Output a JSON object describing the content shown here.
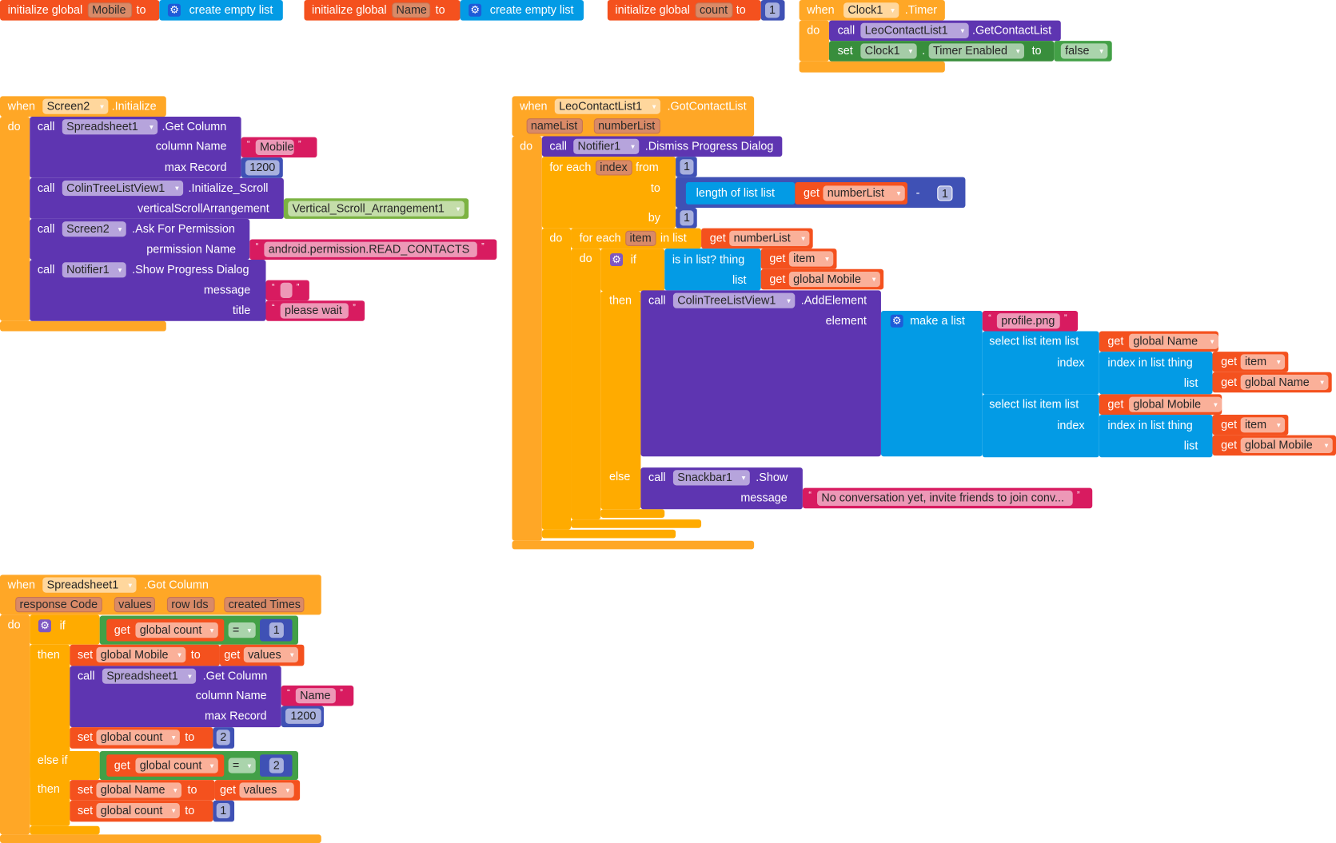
{
  "colors": {
    "event": "#FFA726",
    "control": "#FFAB00",
    "procedure": "#5E35B1",
    "variable": "#F4511E",
    "text": "#D81B60",
    "math": "#3F51B5",
    "list": "#039BE5",
    "logic": "#43A047",
    "component_set": "#388E3C",
    "component_value": "#7CB342",
    "mutator_list": "#1E5BD8",
    "mutator_control": "#7E57C2"
  },
  "quotes": {
    "open": "“",
    "close": "”"
  },
  "icons": {
    "mutator": "gear-icon",
    "dropdown": "▾",
    "gear_glyph": "⚙"
  },
  "globals": [
    {
      "keyword": "initialize global",
      "name": "Mobile",
      "to": "to",
      "value": "create empty list"
    },
    {
      "keyword": "initialize global",
      "name": "Name",
      "to": "to",
      "value": "create empty list"
    },
    {
      "keyword": "initialize global",
      "name": "count",
      "to": "to",
      "value": "1"
    }
  ],
  "clock_timer": {
    "when": "when",
    "component": "Clock1",
    "event": ".Timer",
    "do": "do",
    "call": {
      "call": "call",
      "component": "LeoContactList1",
      "method": ".GetContactList"
    },
    "set": {
      "set": "set",
      "component": "Clock1",
      "dot": ".",
      "property": "Timer Enabled",
      "to": "to",
      "value": "false"
    }
  },
  "screen_init": {
    "when": "when",
    "component": "Screen2",
    "event": ".Initialize",
    "do": "do",
    "calls": [
      {
        "call": "call",
        "component": "Spreadsheet1",
        "method": ".Get Column",
        "args": [
          {
            "label": "column Name",
            "value": "Mobile"
          },
          {
            "label": "max Record",
            "value": "1200"
          }
        ]
      },
      {
        "call": "call",
        "component": "ColinTreeListView1",
        "method": ".Initialize_Scroll",
        "args": [
          {
            "label": "verticalScrollArrangement",
            "value": "Vertical_Scroll_Arrangement1"
          }
        ]
      },
      {
        "call": "call",
        "component": "Screen2",
        "method": ".Ask For Permission",
        "args": [
          {
            "label": "permission Name",
            "value": "android.permission.READ_CONTACTS"
          }
        ]
      },
      {
        "call": "call",
        "component": "Notifier1",
        "method": ".Show Progress Dialog",
        "args": [
          {
            "label": "message",
            "value": ""
          },
          {
            "label": "title",
            "value": "please wait"
          }
        ]
      }
    ]
  },
  "got_contacts": {
    "when": "when",
    "component": "LeoContactList1",
    "event": ".GotContactList",
    "params": [
      "nameList",
      "numberList"
    ],
    "do": "do",
    "dismiss": {
      "call": "call",
      "component": "Notifier1",
      "method": ".Dismiss Progress Dialog"
    },
    "for_range": {
      "for_each": "for each",
      "var": "index",
      "from": "from",
      "from_value": "1",
      "to": "to",
      "length_of_list": "length of list  list",
      "get": "get",
      "list_var": "numberList",
      "minus": "-",
      "minus_value": "1",
      "by": "by",
      "by_value": "1",
      "do": "do"
    },
    "for_list": {
      "for_each": "for each",
      "var": "item",
      "in_list": "in list",
      "get": "get",
      "list_var": "numberList",
      "do": "do"
    },
    "if": {
      "if": "if",
      "is_in_list": "is in list? thing",
      "list": "list",
      "get": "get",
      "thing_var": "item",
      "list_var": "global Mobile",
      "then": "then",
      "else": "else"
    },
    "add_element": {
      "call": "call",
      "component": "ColinTreeListView1",
      "method": ".AddElement",
      "element": "element",
      "make_a_list": "make a list",
      "image": "profile.png",
      "selects": [
        {
          "select": "select list item  list",
          "get": "get",
          "list_var": "global Name",
          "index": "index",
          "index_in_list": "index in list  thing",
          "thing_get": "get",
          "thing_var": "item",
          "list": "list",
          "list_get": "get",
          "list_var2": "global Name"
        },
        {
          "select": "select list item  list",
          "get": "get",
          "list_var": "global Mobile",
          "index": "index",
          "index_in_list": "index in list  thing",
          "thing_get": "get",
          "thing_var": "item",
          "list": "list",
          "list_get": "get",
          "list_var2": "global Mobile"
        }
      ]
    },
    "snackbar": {
      "call": "call",
      "component": "Snackbar1",
      "method": ".Show",
      "message": "message",
      "value": "No conversation yet, invite friends to join conv..."
    }
  },
  "got_column": {
    "when": "when",
    "component": "Spreadsheet1",
    "event": ".Got Column",
    "params": [
      "response Code",
      "values",
      "row Ids",
      "created Times"
    ],
    "do": "do",
    "if": "if",
    "then": "then",
    "else_if": "else if",
    "conditions": [
      {
        "get": "get",
        "var": "global count",
        "op": "=",
        "value": "1"
      },
      {
        "get": "get",
        "var": "global count",
        "op": "=",
        "value": "2"
      }
    ],
    "then1": {
      "set_mobile": {
        "set": "set",
        "var": "global Mobile",
        "to": "to",
        "get": "get",
        "value": "values"
      },
      "call": {
        "call": "call",
        "component": "Spreadsheet1",
        "method": ".Get Column",
        "args": [
          {
            "label": "column Name",
            "value": "Name"
          },
          {
            "label": "max Record",
            "value": "1200"
          }
        ]
      },
      "set_count": {
        "set": "set",
        "var": "global count",
        "to": "to",
        "value": "2"
      }
    },
    "then2": {
      "set_name": {
        "set": "set",
        "var": "global Name",
        "to": "to",
        "get": "get",
        "value": "values"
      },
      "set_count": {
        "set": "set",
        "var": "global count",
        "to": "to",
        "value": "1"
      }
    }
  }
}
